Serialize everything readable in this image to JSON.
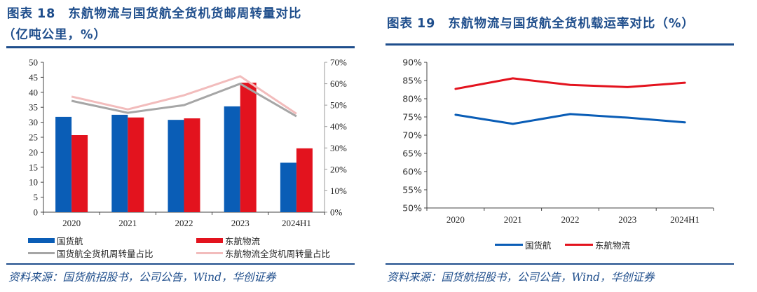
{
  "left": {
    "title_prefix": "图表",
    "title_number": "18",
    "title_line1": "东航物流与国货航全货机货邮周转量对比",
    "title_line2": "（亿吨公里，%）",
    "source": "资料来源：国货航招股书，公司公告，Wind，华创证券",
    "legend": [
      {
        "label": "国货航",
        "kind": "bar",
        "color": "#0a5db6"
      },
      {
        "label": "东航物流",
        "kind": "bar",
        "color": "#e3131e"
      },
      {
        "label": "国货航全货机周转量占比",
        "kind": "line",
        "color": "#a6a6a6"
      },
      {
        "label": "东航物流全货机周转量占比",
        "kind": "line",
        "color": "#f2bcbc"
      }
    ]
  },
  "right": {
    "title_prefix": "图表",
    "title_number": "19",
    "title_text": "东航物流与国货航全货机载运率对比（%）",
    "source": "资料来源：国货航招股书，公司公告，Wind，华创证券",
    "legend": [
      {
        "label": "国货航",
        "color": "#0a5db6"
      },
      {
        "label": "东航物流",
        "color": "#e3131e"
      }
    ]
  },
  "chart_data": [
    {
      "type": "bar",
      "title": "东航物流与国货航全货机货邮周转量对比（亿吨公里，%）",
      "categories": [
        "2020",
        "2021",
        "2022",
        "2023",
        "2024H1"
      ],
      "ylim": [
        0,
        50
      ],
      "yticks": [
        "0",
        "5",
        "10",
        "15",
        "20",
        "25",
        "30",
        "35",
        "40",
        "45",
        "50"
      ],
      "y2lim": [
        0,
        70
      ],
      "y2ticks": [
        "0%",
        "10%",
        "20%",
        "30%",
        "40%",
        "50%",
        "60%",
        "70%"
      ],
      "ylabel": "亿吨公里",
      "y2label": "%",
      "grid": false,
      "legend_position": "bottom",
      "series": [
        {
          "name": "国货航",
          "type": "bar",
          "axis": "left",
          "color": "#0a5db6",
          "values": [
            31.8,
            32.5,
            30.8,
            35.3,
            16.5
          ]
        },
        {
          "name": "东航物流",
          "type": "bar",
          "axis": "left",
          "color": "#e3131e",
          "values": [
            25.7,
            31.6,
            31.3,
            43.2,
            21.3
          ]
        },
        {
          "name": "国货航全货机周转量占比",
          "type": "line",
          "axis": "right",
          "color": "#a6a6a6",
          "values": [
            52.0,
            46.4,
            50.0,
            60.0,
            44.8
          ]
        },
        {
          "name": "东航物流全货机周转量占比",
          "type": "line",
          "axis": "right",
          "color": "#f2bcbc",
          "values": [
            54.0,
            48.0,
            54.6,
            63.5,
            46.0
          ]
        }
      ]
    },
    {
      "type": "line",
      "title": "东航物流与国货航全货机载运率对比（%）",
      "categories": [
        "2020",
        "2021",
        "2022",
        "2023",
        "2024H1"
      ],
      "ylim": [
        50,
        90
      ],
      "yticks": [
        "50%",
        "55%",
        "60%",
        "65%",
        "70%",
        "75%",
        "80%",
        "85%",
        "90%"
      ],
      "ylabel": "%",
      "grid": false,
      "legend_position": "bottom",
      "series": [
        {
          "name": "国货航",
          "color": "#0a5db6",
          "values": [
            75.6,
            73.1,
            75.8,
            74.8,
            73.5
          ]
        },
        {
          "name": "东航物流",
          "color": "#e3131e",
          "values": [
            82.7,
            85.6,
            83.8,
            83.2,
            84.4
          ]
        }
      ]
    }
  ]
}
